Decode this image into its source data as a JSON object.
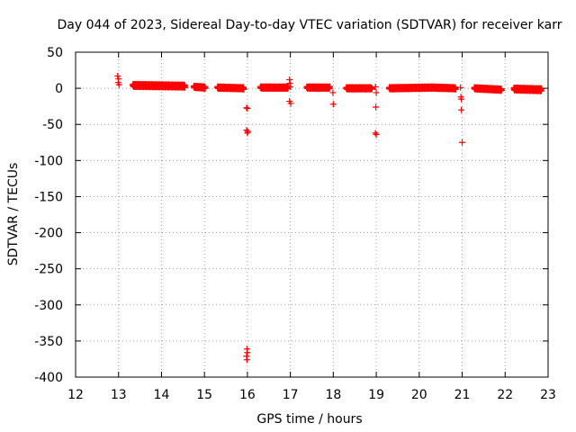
{
  "chart_data": {
    "type": "scatter",
    "title": "Day 044 of 2023, Sidereal Day-to-day VTEC variation (SDTVAR) for receiver karr",
    "xlabel": "GPS time / hours",
    "ylabel": "SDTVAR / TECUs",
    "xlim": [
      12,
      23
    ],
    "ylim": [
      -400,
      50
    ],
    "xticks": [
      "12",
      "13",
      "14",
      "15",
      "16",
      "17",
      "18",
      "19",
      "20",
      "21",
      "22",
      "23"
    ],
    "yticks": [
      "50",
      "0",
      "-50",
      "-100",
      "-150",
      "-200",
      "-250",
      "-300",
      "-350",
      "-400"
    ],
    "grid": true,
    "marker": "+",
    "series": [
      {
        "name": "SDTVAR",
        "color": "#ff0000",
        "segments": [
          {
            "x_start": 13.33,
            "x_end": 14.55,
            "y_start": 4,
            "y_end": 3,
            "amplitude": 2
          },
          {
            "x_start": 14.75,
            "x_end": 15.02,
            "y_start": 2,
            "y_end": 1,
            "amplitude": 1.5
          },
          {
            "x_start": 15.3,
            "x_end": 15.92,
            "y_start": 1,
            "y_end": 0,
            "amplitude": 1.5
          },
          {
            "x_start": 16.3,
            "x_end": 16.95,
            "y_start": 1,
            "y_end": 1,
            "amplitude": 1.5
          },
          {
            "x_start": 17.38,
            "x_end": 17.92,
            "y_start": 1,
            "y_end": 1,
            "amplitude": 1.5
          },
          {
            "x_start": 18.3,
            "x_end": 18.9,
            "y_start": 0,
            "y_end": 0,
            "amplitude": 1.5
          },
          {
            "x_start": 19.3,
            "x_end": 20.3,
            "y_start": 0,
            "y_end": 1,
            "amplitude": 1.5
          },
          {
            "x_start": 20.3,
            "x_end": 20.85,
            "y_start": 1,
            "y_end": 0,
            "amplitude": 1.5
          },
          {
            "x_start": 21.28,
            "x_end": 21.92,
            "y_start": 0,
            "y_end": -2,
            "amplitude": 1.5
          },
          {
            "x_start": 22.2,
            "x_end": 22.85,
            "y_start": -1,
            "y_end": -2,
            "amplitude": 2
          }
        ],
        "points": [
          {
            "x": 12.98,
            "y": 17
          },
          {
            "x": 13.0,
            "y": 13
          },
          {
            "x": 12.99,
            "y": 8
          },
          {
            "x": 13.01,
            "y": 5
          },
          {
            "x": 15.98,
            "y": -27
          },
          {
            "x": 16.0,
            "y": -28
          },
          {
            "x": 15.98,
            "y": -58
          },
          {
            "x": 16.01,
            "y": -60
          },
          {
            "x": 16.0,
            "y": -62
          },
          {
            "x": 15.99,
            "y": -361
          },
          {
            "x": 16.0,
            "y": -366
          },
          {
            "x": 15.98,
            "y": -371
          },
          {
            "x": 15.99,
            "y": -376
          },
          {
            "x": 16.98,
            "y": 12
          },
          {
            "x": 16.99,
            "y": 7
          },
          {
            "x": 17.0,
            "y": 2
          },
          {
            "x": 16.98,
            "y": -18
          },
          {
            "x": 17.01,
            "y": -21
          },
          {
            "x": 17.99,
            "y": -6
          },
          {
            "x": 18.0,
            "y": -22
          },
          {
            "x": 18.98,
            "y": 2
          },
          {
            "x": 19.0,
            "y": -6
          },
          {
            "x": 18.99,
            "y": -26
          },
          {
            "x": 18.98,
            "y": -62
          },
          {
            "x": 19.0,
            "y": -64
          },
          {
            "x": 20.96,
            "y": 1
          },
          {
            "x": 20.97,
            "y": -12
          },
          {
            "x": 20.98,
            "y": -15
          },
          {
            "x": 20.98,
            "y": -30
          },
          {
            "x": 21.0,
            "y": -75
          }
        ]
      }
    ]
  }
}
